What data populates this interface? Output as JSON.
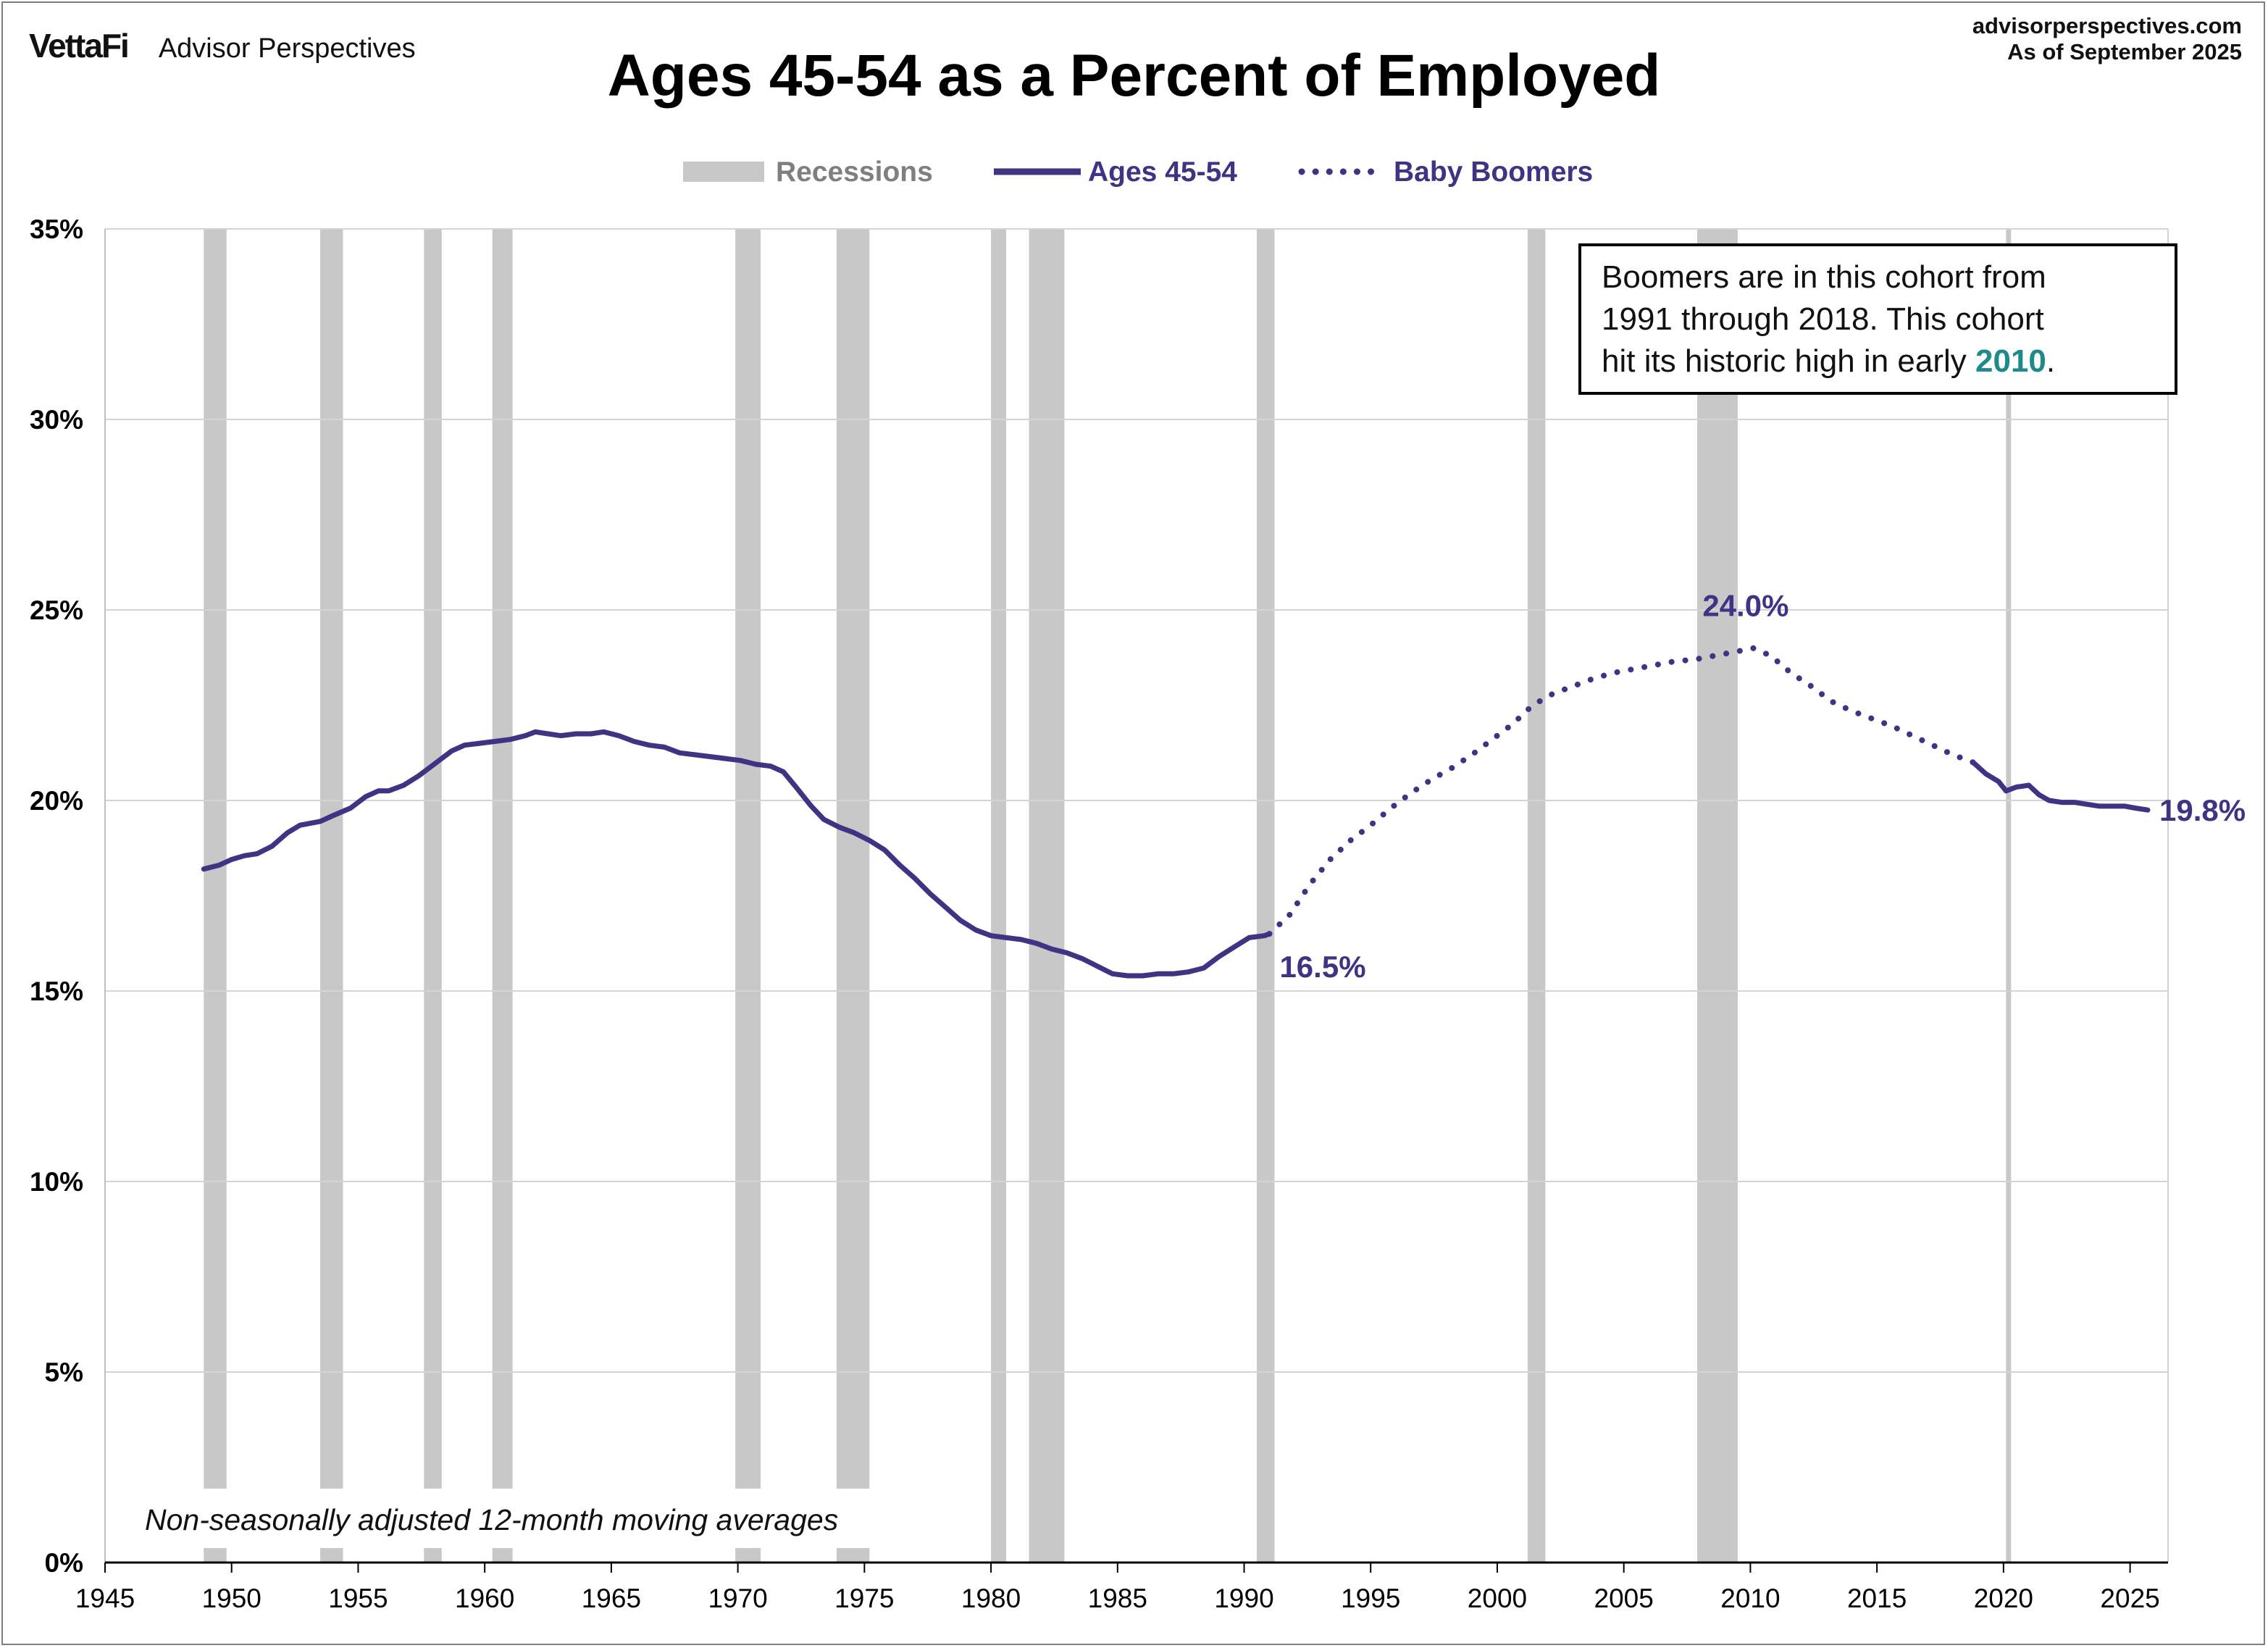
{
  "header": {
    "brand_logo": "VettaFi",
    "brand_name": "Advisor Perspectives",
    "source_site": "advisorperspectives.com",
    "as_of": "As of September 2025"
  },
  "chart_data": {
    "type": "line",
    "title": "Ages 45-54 as a Percent of Employed",
    "xlim": [
      1945,
      2026.5
    ],
    "ylim": [
      0,
      35
    ],
    "x_ticks": [
      "1945",
      "1950",
      "1955",
      "1960",
      "1965",
      "1970",
      "1975",
      "1980",
      "1985",
      "1990",
      "1995",
      "2000",
      "2005",
      "2010",
      "2015",
      "2020",
      "2025"
    ],
    "y_ticks": [
      "0%",
      "5%",
      "10%",
      "15%",
      "20%",
      "25%",
      "30%",
      "35%"
    ],
    "grid": "horizontal",
    "legend": {
      "position": "top-center",
      "items": [
        {
          "label": "Recessions",
          "style": "bar",
          "color": "#c8c8c8"
        },
        {
          "label": "Ages 45-54",
          "style": "solid",
          "color": "#3f3384"
        },
        {
          "label": "Baby Boomers",
          "style": "dotted",
          "color": "#3f3384"
        }
      ]
    },
    "recessions": [
      [
        1948.9,
        1949.8
      ],
      [
        1953.5,
        1954.4
      ],
      [
        1957.6,
        1958.3
      ],
      [
        1960.3,
        1961.1
      ],
      [
        1969.9,
        1970.9
      ],
      [
        1973.9,
        1975.2
      ],
      [
        1980.0,
        1980.6
      ],
      [
        1981.5,
        1982.9
      ],
      [
        1990.5,
        1991.2
      ],
      [
        2001.2,
        2001.9
      ],
      [
        2007.9,
        2009.5
      ],
      [
        2020.1,
        2020.3
      ]
    ],
    "series": [
      {
        "name": "Ages 45-54",
        "style": "solid",
        "x": [
          1948.9,
          1949.5,
          1950.0,
          1950.5,
          1951.0,
          1951.6,
          1952.2,
          1952.7,
          1953.5,
          1954.0,
          1954.7,
          1955.3,
          1955.8,
          1956.2,
          1956.8,
          1957.4,
          1958.0,
          1958.7,
          1959.2,
          1959.8,
          1960.4,
          1961.0,
          1961.6,
          1962.0,
          1962.5,
          1963.0,
          1963.6,
          1964.2,
          1964.7,
          1965.3,
          1965.9,
          1966.5,
          1967.1,
          1967.7,
          1968.3,
          1968.9,
          1969.5,
          1970.1,
          1970.7,
          1971.3,
          1971.8,
          1972.3,
          1972.9,
          1973.4,
          1974.0,
          1974.6,
          1975.2,
          1975.8,
          1976.4,
          1977.0,
          1977.6,
          1978.2,
          1978.8,
          1979.4,
          1980.0,
          1980.6,
          1981.2,
          1981.8,
          1982.4,
          1983.0,
          1983.6,
          1984.2,
          1984.8,
          1985.4,
          1986.0,
          1986.6,
          1987.2,
          1987.8,
          1988.4,
          1989.0,
          1989.6,
          1990.2,
          1990.8,
          1991.0
        ],
        "y": [
          18.2,
          18.3,
          18.45,
          18.55,
          18.6,
          18.8,
          19.15,
          19.35,
          19.45,
          19.6,
          19.8,
          20.1,
          20.25,
          20.25,
          20.4,
          20.65,
          20.95,
          21.3,
          21.45,
          21.5,
          21.55,
          21.6,
          21.7,
          21.8,
          21.75,
          21.7,
          21.75,
          21.75,
          21.8,
          21.7,
          21.55,
          21.45,
          21.4,
          21.25,
          21.2,
          21.15,
          21.1,
          21.05,
          20.95,
          20.9,
          20.75,
          20.35,
          19.85,
          19.5,
          19.3,
          19.15,
          18.95,
          18.7,
          18.3,
          17.95,
          17.55,
          17.2,
          16.85,
          16.6,
          16.45,
          16.4,
          16.35,
          16.25,
          16.1,
          16.0,
          15.85,
          15.65,
          15.45,
          15.4,
          15.4,
          15.45,
          15.45,
          15.5,
          15.6,
          15.9,
          16.15,
          16.4,
          16.45,
          16.5
        ]
      },
      {
        "name": "Baby Boomers",
        "style": "dotted",
        "x": [
          1991.0,
          1991.8,
          1992.6,
          1993.4,
          1994.2,
          1995.0,
          1995.8,
          1996.6,
          1997.4,
          1998.2,
          1999.0,
          1999.8,
          2000.6,
          2001.4,
          2002.2,
          2003.0,
          2003.8,
          2004.6,
          2005.4,
          2006.2,
          2007.0,
          2007.8,
          2008.6,
          2009.4,
          2010.1,
          2010.8,
          2011.6,
          2012.4,
          2013.2,
          2014.0,
          2014.8,
          2015.6,
          2016.4,
          2017.2,
          2018.0,
          2018.8
        ],
        "y": [
          16.5,
          17.0,
          17.8,
          18.45,
          18.95,
          19.35,
          19.8,
          20.2,
          20.55,
          20.85,
          21.2,
          21.6,
          22.0,
          22.5,
          22.8,
          23.0,
          23.2,
          23.35,
          23.45,
          23.55,
          23.65,
          23.7,
          23.8,
          23.9,
          24.0,
          23.8,
          23.35,
          23.0,
          22.6,
          22.35,
          22.15,
          21.95,
          21.7,
          21.45,
          21.2,
          21.0
        ]
      },
      {
        "name": "Ages 45-54",
        "style": "solid",
        "x": [
          2018.8,
          2019.3,
          2019.8,
          2020.1,
          2020.5,
          2021.0,
          2021.4,
          2021.8,
          2022.3,
          2022.8,
          2023.3,
          2023.8,
          2024.3,
          2024.8,
          2025.2,
          2025.7
        ],
        "y": [
          21.0,
          20.7,
          20.5,
          20.25,
          20.35,
          20.4,
          20.15,
          20.0,
          19.95,
          19.95,
          19.9,
          19.85,
          19.85,
          19.85,
          19.8,
          19.75
        ]
      }
    ],
    "point_labels": [
      {
        "text": "16.5%",
        "x": 1991.0,
        "y": 16.5,
        "anchor": "right-below"
      },
      {
        "text": "24.0%",
        "x": 2010.1,
        "y": 24.0,
        "anchor": "above"
      },
      {
        "text": "19.8%",
        "x": 2025.7,
        "y": 19.75,
        "anchor": "right"
      }
    ],
    "annotation": {
      "line1": "Boomers are in this cohort from",
      "line2": "1991 through 2018. This cohort",
      "line3_prefix": "hit its historic high in early ",
      "line3_highlight": "2010",
      "line3_suffix": "."
    },
    "note": "Non-seasonally adjusted  12-month moving averages"
  }
}
